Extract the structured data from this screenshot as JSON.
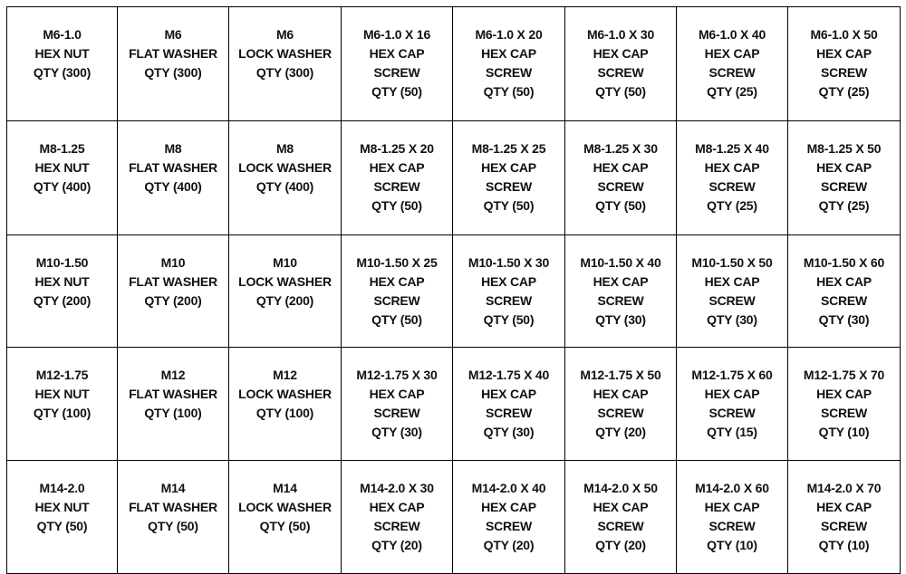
{
  "table": {
    "rows": [
      [
        [
          "M6-1.0",
          "HEX NUT",
          "QTY (300)"
        ],
        [
          "M6",
          "FLAT WASHER",
          "QTY (300)"
        ],
        [
          "M6",
          "LOCK WASHER",
          "QTY (300)"
        ],
        [
          "M6-1.0 X 16",
          "HEX CAP",
          "SCREW",
          "QTY (50)"
        ],
        [
          "M6-1.0 X 20",
          "HEX CAP",
          "SCREW",
          "QTY (50)"
        ],
        [
          "M6-1.0 X 30",
          "HEX CAP",
          "SCREW",
          "QTY (50)"
        ],
        [
          "M6-1.0 X 40",
          "HEX CAP",
          "SCREW",
          "QTY (25)"
        ],
        [
          "M6-1.0 X 50",
          "HEX CAP",
          "SCREW",
          "QTY (25)"
        ]
      ],
      [
        [
          "M8-1.25",
          "HEX NUT",
          "QTY (400)"
        ],
        [
          "M8",
          "FLAT WASHER",
          "QTY (400)"
        ],
        [
          "M8",
          "LOCK WASHER",
          "QTY (400)"
        ],
        [
          "M8-1.25 X 20",
          "HEX CAP",
          "SCREW",
          "QTY (50)"
        ],
        [
          "M8-1.25 X 25",
          "HEX CAP",
          "SCREW",
          "QTY (50)"
        ],
        [
          "M8-1.25 X 30",
          "HEX CAP",
          "SCREW",
          "QTY (50)"
        ],
        [
          "M8-1.25 X 40",
          "HEX CAP",
          "SCREW",
          "QTY (25)"
        ],
        [
          "M8-1.25 X 50",
          "HEX CAP",
          "SCREW",
          "QTY (25)"
        ]
      ],
      [
        [
          "M10-1.50",
          "HEX NUT",
          "QTY (200)"
        ],
        [
          "M10",
          "FLAT WASHER",
          "QTY (200)"
        ],
        [
          "M10",
          "LOCK WASHER",
          "QTY (200)"
        ],
        [
          "M10-1.50 X 25",
          "HEX CAP",
          "SCREW",
          "QTY (50)"
        ],
        [
          "M10-1.50 X 30",
          "HEX CAP",
          "SCREW",
          "QTY (50)"
        ],
        [
          "M10-1.50 X 40",
          "HEX CAP",
          "SCREW",
          "QTY (30)"
        ],
        [
          "M10-1.50 X 50",
          "HEX CAP",
          "SCREW",
          "QTY (30)"
        ],
        [
          "M10-1.50 X 60",
          "HEX CAP",
          "SCREW",
          "QTY (30)"
        ]
      ],
      [
        [
          "M12-1.75",
          "HEX NUT",
          "QTY (100)"
        ],
        [
          "M12",
          "FLAT WASHER",
          "QTY (100)"
        ],
        [
          "M12",
          "LOCK WASHER",
          "QTY (100)"
        ],
        [
          "M12-1.75 X 30",
          "HEX CAP",
          "SCREW",
          "QTY (30)"
        ],
        [
          "M12-1.75 X 40",
          "HEX CAP",
          "SCREW",
          "QTY (30)"
        ],
        [
          "M12-1.75 X 50",
          "HEX CAP",
          "SCREW",
          "QTY (20)"
        ],
        [
          "M12-1.75 X 60",
          "HEX CAP",
          "SCREW",
          "QTY (15)"
        ],
        [
          "M12-1.75 X 70",
          "HEX CAP",
          "SCREW",
          "QTY (10)"
        ]
      ],
      [
        [
          "M14-2.0",
          "HEX NUT",
          "QTY (50)"
        ],
        [
          "M14",
          "FLAT WASHER",
          "QTY (50)"
        ],
        [
          "M14",
          "LOCK WASHER",
          "QTY (50)"
        ],
        [
          "M14-2.0 X 30",
          "HEX CAP",
          "SCREW",
          "QTY (20)"
        ],
        [
          "M14-2.0 X 40",
          "HEX CAP",
          "SCREW",
          "QTY (20)"
        ],
        [
          "M14-2.0 X 50",
          "HEX CAP",
          "SCREW",
          "QTY (20)"
        ],
        [
          "M14-2.0 X 60",
          "HEX CAP",
          "SCREW",
          "QTY (10)"
        ],
        [
          "M14-2.0 X 70",
          "HEX CAP",
          "SCREW",
          "QTY (10)"
        ]
      ]
    ]
  }
}
